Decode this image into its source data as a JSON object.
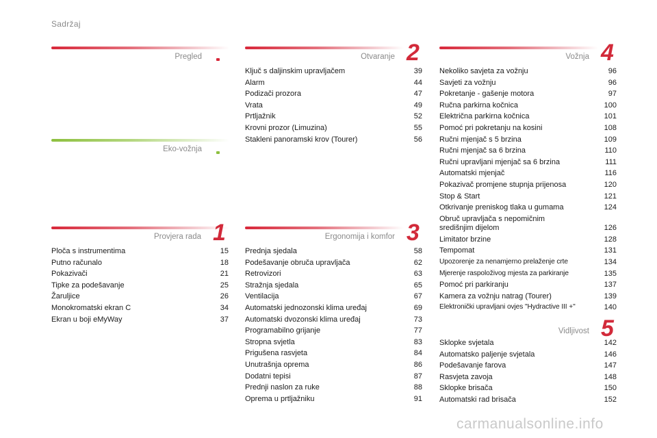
{
  "page_title": "Sadržaj",
  "sections": {
    "pregled": {
      "title": "Pregled"
    },
    "eko": {
      "title": "Eko-vožnja"
    },
    "provjera": {
      "title": "Provjera rada",
      "number": "1",
      "items": [
        {
          "label": "Ploča s instrumentima",
          "page": "15"
        },
        {
          "label": "Putno računalo",
          "page": "18"
        },
        {
          "label": "Pokazivači",
          "page": "21"
        },
        {
          "label": "Tipke za podešavanje",
          "page": "25"
        },
        {
          "label": "Žaruljice",
          "page": "26"
        },
        {
          "label": "Monokromatski ekran C",
          "page": "34"
        },
        {
          "label": "Ekran u boji eMyWay",
          "page": "37"
        }
      ]
    },
    "otvaranje": {
      "title": "Otvaranje",
      "number": "2",
      "items": [
        {
          "label": "Ključ s daljinskim upravljačem",
          "page": "39"
        },
        {
          "label": "Alarm",
          "page": "44"
        },
        {
          "label": "Podizači prozora",
          "page": "47"
        },
        {
          "label": "Vrata",
          "page": "49"
        },
        {
          "label": "Prtljažnik",
          "page": "52"
        },
        {
          "label": "Krovni prozor (Limuzina)",
          "page": "55"
        },
        {
          "label": "Stakleni panoramski krov (Tourer)",
          "page": "56"
        }
      ]
    },
    "ergonomija": {
      "title": "Ergonomija i komfor",
      "number": "3",
      "items": [
        {
          "label": "Prednja sjedala",
          "page": "58"
        },
        {
          "label": "Podešavanje obruča upravljača",
          "page": "62"
        },
        {
          "label": "Retrovizori",
          "page": "63"
        },
        {
          "label": "Stražnja sjedala",
          "page": "65"
        },
        {
          "label": "Ventilacija",
          "page": "67"
        },
        {
          "label": "Automatski jednozonski klima uređaj",
          "page": "69"
        },
        {
          "label": "Automatski dvozonski klima uređaj",
          "page": "73"
        },
        {
          "label": "Programabilno grijanje",
          "page": "77"
        },
        {
          "label": "Stropna svjetla",
          "page": "83"
        },
        {
          "label": "Prigušena rasvjeta",
          "page": "84"
        },
        {
          "label": "Unutrašnja oprema",
          "page": "86"
        },
        {
          "label": "Dodatni tepisi",
          "page": "87"
        },
        {
          "label": "Prednji naslon za ruke",
          "page": "88"
        },
        {
          "label": "Oprema u prtljažniku",
          "page": "91"
        }
      ]
    },
    "voznja": {
      "title": "Vožnja",
      "number": "4",
      "items": [
        {
          "label": "Nekoliko savjeta za vožnju",
          "page": "96"
        },
        {
          "label": "Savjeti za vožnju",
          "page": "96"
        },
        {
          "label": "Pokretanje - gašenje motora",
          "page": "97"
        },
        {
          "label": "Ručna parkirna kočnica",
          "page": "100"
        },
        {
          "label": "Električna parkirna kočnica",
          "page": "101"
        },
        {
          "label": "Pomoć pri pokretanju na kosini",
          "page": "108"
        },
        {
          "label": "Ručni mjenjač s 5 brzina",
          "page": "109"
        },
        {
          "label": "Ručni mjenjač sa 6 brzina",
          "page": "110"
        },
        {
          "label": "Ručni upravljani mjenjač sa 6 brzina",
          "page": "111"
        },
        {
          "label": "Automatski mjenjač",
          "page": "116"
        },
        {
          "label": "Pokazivač promjene stupnja prijenosa",
          "page": "120"
        },
        {
          "label": "Stop & Start",
          "page": "121"
        },
        {
          "label": "Otkrivanje preniskog tlaka u gumama",
          "page": "124"
        },
        {
          "label": "Obruč upravljača s nepomičnim središnjim dijelom",
          "page": "126",
          "two_line": true
        },
        {
          "label": "Limitator brzine",
          "page": "128"
        },
        {
          "label": "Tempomat",
          "page": "131"
        },
        {
          "label": "Upozorenje za nenamjerno prelaženje crte",
          "page": "134",
          "tight": true
        },
        {
          "label": "Mjerenje raspoloživog mjesta za parkiranje",
          "page": "135",
          "tight": true
        },
        {
          "label": "Pomoć pri parkiranju",
          "page": "137"
        },
        {
          "label": "Kamera za vožnju natrag (Tourer)",
          "page": "139"
        },
        {
          "label": "Elektronički upravljani ovjes \"Hydractive III +\"",
          "page": "140",
          "tight": true
        }
      ]
    },
    "vidljivost": {
      "title": "Vidljivost",
      "number": "5",
      "items": [
        {
          "label": "Sklopke svjetala",
          "page": "142"
        },
        {
          "label": "Automatsko paljenje svjetala",
          "page": "146"
        },
        {
          "label": "Podešavanje farova",
          "page": "147"
        },
        {
          "label": "Rasvjeta zavoja",
          "page": "148"
        },
        {
          "label": "Sklopke brisača",
          "page": "150"
        },
        {
          "label": "Automatski rad brisača",
          "page": "152"
        }
      ]
    }
  },
  "watermark": "carmanualsonline.info",
  "colors": {
    "accent_red": "#d22a3a",
    "accent_green": "#8dc03f"
  }
}
